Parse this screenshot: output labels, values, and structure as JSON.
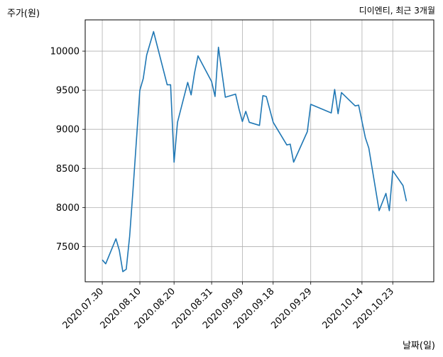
{
  "chart_data": {
    "type": "line",
    "title": "디이엔티, 최근 3개월",
    "xlabel": "날짜(일)",
    "ylabel": "주가(원)",
    "x_tick_labels": [
      "2020.07.30",
      "2020.08.10",
      "2020.08.20",
      "2020.08.31",
      "2020.09.09",
      "2020.09.18",
      "2020.09.29",
      "2020.10.14",
      "2020.10.23"
    ],
    "x_tick_dates": [
      "2020-07-30",
      "2020-08-10",
      "2020-08-20",
      "2020-08-31",
      "2020-09-09",
      "2020-09-18",
      "2020-09-29",
      "2020-10-14",
      "2020-10-23"
    ],
    "y_ticks": [
      7500,
      8000,
      8500,
      9000,
      9500,
      10000
    ],
    "ylim": [
      7050,
      10400
    ],
    "xlim": [
      "2020-07-25",
      "2020-11-04"
    ],
    "grid": true,
    "line_color": "#1f77b4",
    "series": [
      {
        "x": [
          "2020-07-30",
          "2020-07-31",
          "2020-08-03",
          "2020-08-04",
          "2020-08-05",
          "2020-08-06",
          "2020-08-07",
          "2020-08-08",
          "2020-08-10",
          "2020-08-11",
          "2020-08-12",
          "2020-08-14",
          "2020-08-18",
          "2020-08-19",
          "2020-08-20",
          "2020-08-21",
          "2020-08-24",
          "2020-08-25",
          "2020-08-26",
          "2020-08-27",
          "2020-08-31",
          "2020-09-01",
          "2020-09-02",
          "2020-09-04",
          "2020-09-07",
          "2020-09-08",
          "2020-09-09",
          "2020-09-10",
          "2020-09-11",
          "2020-09-14",
          "2020-09-15",
          "2020-09-16",
          "2020-09-18",
          "2020-09-22",
          "2020-09-23",
          "2020-09-24",
          "2020-09-28",
          "2020-09-29",
          "2020-10-05",
          "2020-10-06",
          "2020-10-07",
          "2020-10-08",
          "2020-10-12",
          "2020-10-13",
          "2020-10-15",
          "2020-10-16",
          "2020-10-19",
          "2020-10-21",
          "2020-10-22",
          "2020-10-23",
          "2020-10-26",
          "2020-10-27"
        ],
        "values": [
          7330,
          7280,
          7600,
          7450,
          7180,
          7210,
          7630,
          8230,
          9500,
          9650,
          9950,
          10250,
          9570,
          9570,
          8580,
          9090,
          9600,
          9440,
          9720,
          9940,
          9610,
          9420,
          10050,
          9410,
          9450,
          9260,
          9100,
          9230,
          9090,
          9050,
          9430,
          9420,
          9090,
          8800,
          8810,
          8580,
          8970,
          9320,
          9210,
          9510,
          9200,
          9470,
          9300,
          9310,
          8890,
          8760,
          7960,
          8180,
          7960,
          8470,
          8280,
          8080
        ]
      }
    ]
  }
}
